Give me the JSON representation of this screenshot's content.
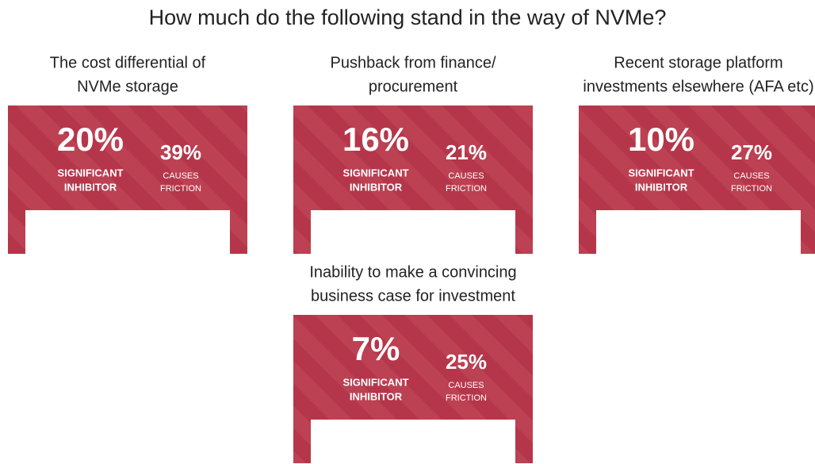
{
  "title": "How much do the following stand in the way of NVMe?",
  "items": [
    {
      "label_lines": [
        "The cost differential of",
        "NVMe storage"
      ],
      "significant": "20%",
      "significant_label": [
        "SIGNIFICANT",
        "INHIBITOR"
      ],
      "friction": "39%",
      "friction_label": [
        "CAUSES",
        "FRICTION"
      ]
    },
    {
      "label_lines": [
        "Pushback from finance/",
        "procurement"
      ],
      "significant": "16%",
      "significant_label": [
        "SIGNIFICANT",
        "INHIBITOR"
      ],
      "friction": "21%",
      "friction_label": [
        "CAUSES",
        "FRICTION"
      ]
    },
    {
      "label_lines": [
        "Recent storage platform",
        "investments elsewhere (AFA etc)"
      ],
      "significant": "10%",
      "significant_label": [
        "SIGNIFICANT",
        "INHIBITOR"
      ],
      "friction": "27%",
      "friction_label": [
        "CAUSES",
        "FRICTION"
      ]
    },
    {
      "label_lines": [
        "Inability to make a convincing",
        "business case for investment"
      ],
      "significant": "7%",
      "significant_label": [
        "SIGNIFICANT",
        "INHIBITOR"
      ],
      "friction": "25%",
      "friction_label": [
        "CAUSES",
        "FRICTION"
      ]
    }
  ]
}
